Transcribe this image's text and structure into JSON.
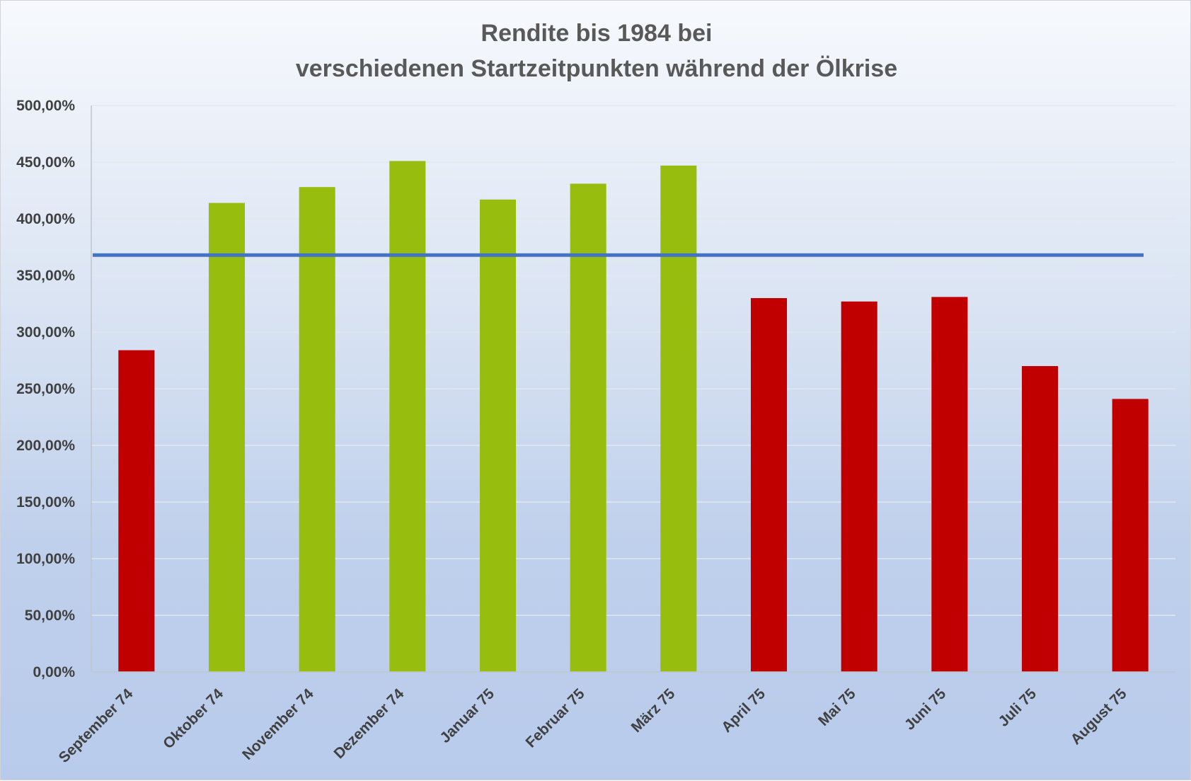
{
  "chart_data": {
    "type": "bar",
    "title": [
      "Rendite bis 1984 bei",
      "verschiedenen Startzeitpunkten während der Ölkrise"
    ],
    "categories": [
      "September 74",
      "Oktober 74",
      "November 74",
      "Dezember 74",
      "Januar 75",
      "Februar 75",
      "März 75",
      "April 75",
      "Mai 75",
      "Juni 75",
      "Juli 75",
      "August 75"
    ],
    "values": [
      284,
      414,
      428,
      451,
      417,
      431,
      447,
      330,
      327,
      331,
      270,
      241
    ],
    "bar_colors": [
      "#c00000",
      "#97bd0e",
      "#97bd0e",
      "#97bd0e",
      "#97bd0e",
      "#97bd0e",
      "#97bd0e",
      "#c00000",
      "#c00000",
      "#c00000",
      "#c00000",
      "#c00000"
    ],
    "reference_line": {
      "value": 368,
      "color": "#4472c4"
    },
    "y_ticks": [
      "0,00%",
      "50,00%",
      "100,00%",
      "150,00%",
      "200,00%",
      "250,00%",
      "300,00%",
      "350,00%",
      "400,00%",
      "450,00%",
      "500,00%"
    ],
    "ylim": [
      0,
      500
    ],
    "y_unit": "percent",
    "xlabel": "",
    "ylabel": "",
    "grid": true,
    "legend": false
  }
}
